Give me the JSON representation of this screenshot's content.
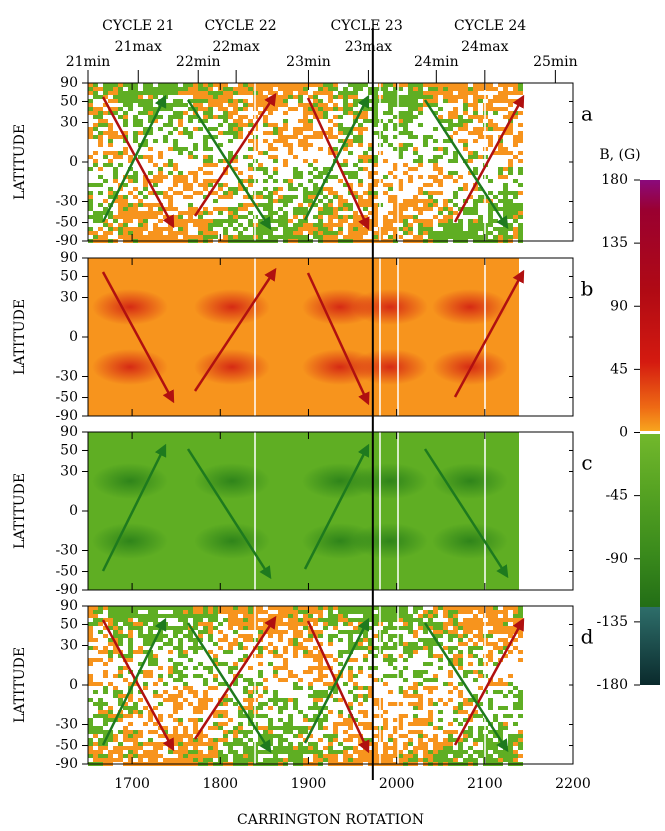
{
  "chart_data": [
    {
      "type": "heatmap",
      "panel_label": "a",
      "ylabel": "LATITUDE",
      "colors": [
        "#f7941d",
        "#5fae23"
      ],
      "ylim": [
        -90,
        90
      ],
      "yticks": [
        -90,
        -50,
        -30,
        0,
        30,
        50,
        90
      ],
      "yscale": "sine",
      "xlim": [
        1650,
        2200
      ],
      "xticks": [
        1700,
        1800,
        1900,
        2000,
        2100,
        2200
      ]
    },
    {
      "type": "heatmap",
      "panel_label": "b",
      "ylabel": "LATITUDE",
      "colors": [
        "#f7941d"
      ],
      "ylim": [
        -90,
        90
      ],
      "yticks": [
        -90,
        -50,
        -30,
        0,
        30,
        50,
        90
      ],
      "yscale": "sine",
      "xlim": [
        1650,
        2200
      ],
      "xticks": [
        1700,
        1800,
        1900,
        2000,
        2100,
        2200
      ]
    },
    {
      "type": "heatmap",
      "panel_label": "c",
      "ylabel": "LATITUDE",
      "colors": [
        "#5fae23"
      ],
      "ylim": [
        -90,
        90
      ],
      "yticks": [
        -90,
        -50,
        -30,
        0,
        30,
        50,
        90
      ],
      "yscale": "sine",
      "xlim": [
        1650,
        2200
      ],
      "xticks": [
        1700,
        1800,
        1900,
        2000,
        2100,
        2200
      ]
    },
    {
      "type": "heatmap",
      "panel_label": "d",
      "ylabel": "LATITUDE",
      "colors": [
        "#f7941d",
        "#5fae23"
      ],
      "ylim": [
        -90,
        90
      ],
      "yticks": [
        -90,
        -50,
        -30,
        0,
        30,
        50,
        90
      ],
      "yscale": "sine",
      "xlim": [
        1650,
        2200
      ],
      "xticks": [
        1700,
        1800,
        1900,
        2000,
        2100,
        2200
      ],
      "xlabel": "CARRINGTON ROTATION"
    }
  ],
  "cycles": [
    {
      "label": "CYCLE 21",
      "x": 1707
    },
    {
      "label": "CYCLE 22",
      "x": 1823
    },
    {
      "label": "CYCLE 23",
      "x": 1966
    },
    {
      "label": "CYCLE 24",
      "x": 2106
    }
  ],
  "phases": [
    {
      "label": "21min",
      "x": 1650
    },
    {
      "label": "21max",
      "x": 1707
    },
    {
      "label": "22min",
      "x": 1775
    },
    {
      "label": "22max",
      "x": 1818
    },
    {
      "label": "23min",
      "x": 1900
    },
    {
      "label": "23max",
      "x": 1968
    },
    {
      "label": "24min",
      "x": 2045
    },
    {
      "label": "24max",
      "x": 2100
    },
    {
      "label": "25min",
      "x": 2180
    }
  ],
  "marker_line": {
    "x": 1973,
    "color": "#000000"
  },
  "colorbar": {
    "title": "B, (G)",
    "lim": [
      -180,
      180
    ],
    "ticks": [
      180,
      135,
      90,
      45,
      0,
      -45,
      -90,
      -135,
      -180
    ]
  }
}
